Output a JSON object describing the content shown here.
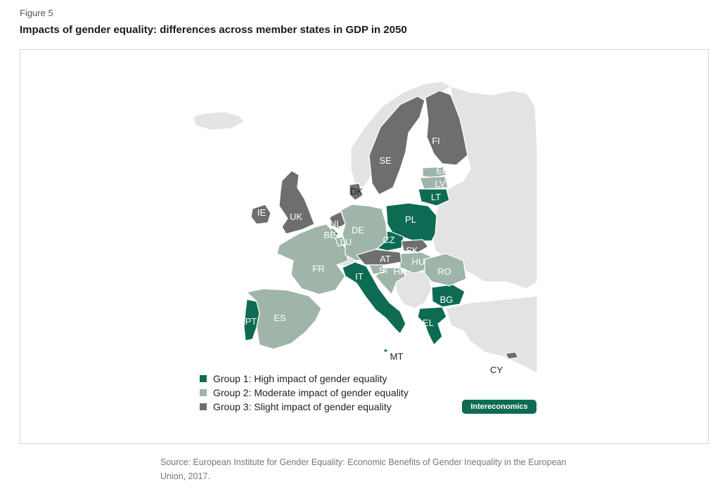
{
  "figure_label": "Figure 5",
  "title": "Impacts of gender equality: differences across member states in GDP in 2050",
  "colors": {
    "group1": "#0d6b53",
    "group2": "#9fb5a9",
    "group3": "#6e6e6e",
    "non_eu": "#e3e3e3",
    "border": "#ffffff"
  },
  "legend": [
    {
      "group": "group1",
      "label": "Group 1: High impact of gender equality"
    },
    {
      "group": "group2",
      "label": "Group 2: Moderate impact of gender equality"
    },
    {
      "group": "group3",
      "label": "Group 3: Slight impact of gender equality"
    }
  ],
  "countries": [
    {
      "code": "PT",
      "group": "group1"
    },
    {
      "code": "IT",
      "group": "group1"
    },
    {
      "code": "BE",
      "group": "group1"
    },
    {
      "code": "PL",
      "group": "group1"
    },
    {
      "code": "CZ",
      "group": "group1"
    },
    {
      "code": "LT",
      "group": "group1"
    },
    {
      "code": "BG",
      "group": "group1"
    },
    {
      "code": "EL",
      "group": "group1"
    },
    {
      "code": "MT",
      "group": "group1"
    },
    {
      "code": "ES",
      "group": "group2"
    },
    {
      "code": "FR",
      "group": "group2"
    },
    {
      "code": "DE",
      "group": "group2"
    },
    {
      "code": "LU",
      "group": "group2"
    },
    {
      "code": "EE",
      "group": "group2"
    },
    {
      "code": "LV",
      "group": "group2"
    },
    {
      "code": "HU",
      "group": "group2"
    },
    {
      "code": "RO",
      "group": "group2"
    },
    {
      "code": "HR",
      "group": "group2"
    },
    {
      "code": "SI",
      "group": "group2"
    },
    {
      "code": "IE",
      "group": "group3"
    },
    {
      "code": "UK",
      "group": "group3"
    },
    {
      "code": "NL",
      "group": "group3"
    },
    {
      "code": "DK",
      "group": "group3"
    },
    {
      "code": "SE",
      "group": "group3"
    },
    {
      "code": "FI",
      "group": "group3"
    },
    {
      "code": "AT",
      "group": "group3"
    },
    {
      "code": "SK",
      "group": "group3"
    },
    {
      "code": "CY",
      "group": "group3"
    }
  ],
  "brand": "Intereconomics",
  "source": "Source: European Institute for Gender Equality: Economic Benefits of Gender Inequality in the European Union, 2017."
}
